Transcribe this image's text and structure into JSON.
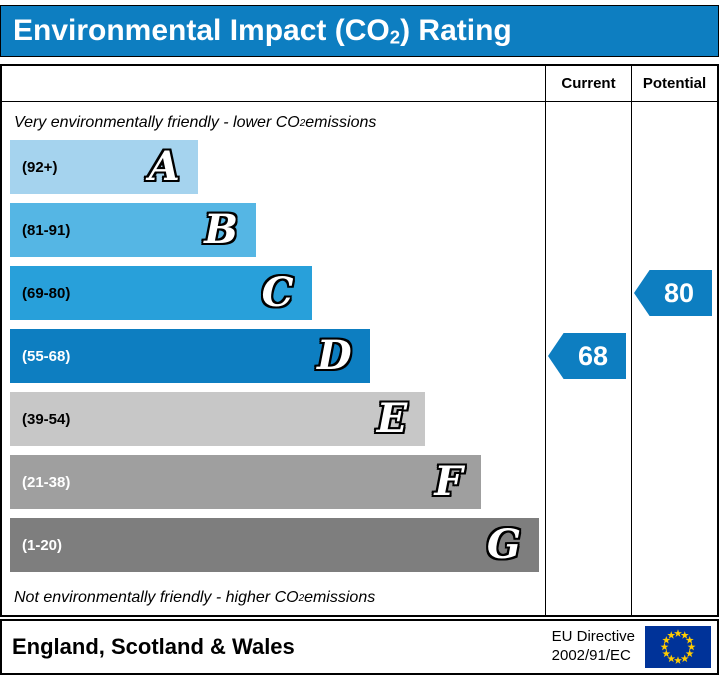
{
  "colors": {
    "accent_blue": "#0d7ec1",
    "flag_background": "#003399",
    "flag_stars": "#ffcc00"
  },
  "title": {
    "pre": "Environmental Impact (CO",
    "sub": "2",
    "post": ") Rating"
  },
  "columns": {
    "current": "Current",
    "potential": "Potential"
  },
  "notes": {
    "sub": "2",
    "top_pre": "Very environmentally friendly - lower CO",
    "top_post": " emissions",
    "bottom_pre": "Not environmentally friendly - higher CO",
    "bottom_post": " emissions"
  },
  "bands": [
    {
      "letter": "A",
      "range": "(92+)",
      "width_pct": 35.5,
      "color": "#a5d3ee",
      "label_color": "#000000"
    },
    {
      "letter": "B",
      "range": "(81-91)",
      "width_pct": 46.5,
      "color": "#55b6e4",
      "label_color": "#000000"
    },
    {
      "letter": "C",
      "range": "(69-80)",
      "width_pct": 57,
      "color": "#28a0da",
      "label_color": "#000000"
    },
    {
      "letter": "D",
      "range": "(55-68)",
      "width_pct": 68,
      "color": "#0d7ec1",
      "label_color": "#ffffff"
    },
    {
      "letter": "E",
      "range": "(39-54)",
      "width_pct": 78.5,
      "color": "#c7c7c7",
      "label_color": "#000000"
    },
    {
      "letter": "F",
      "range": "(21-38)",
      "width_pct": 89,
      "color": "#9f9f9f",
      "label_color": "#ffffff"
    },
    {
      "letter": "G",
      "range": "(1-20)",
      "width_pct": 100,
      "color": "#7e7e7e",
      "label_color": "#ffffff"
    }
  ],
  "current": {
    "value": "68",
    "band": "D",
    "band_index": 3
  },
  "potential": {
    "value": "80",
    "band": "C",
    "band_index": 2
  },
  "footer": {
    "region": "England, Scotland & Wales",
    "directive_line1": "EU Directive",
    "directive_line2": "2002/91/EC"
  },
  "chart_data": {
    "type": "bar",
    "title": "Environmental Impact (CO2) Rating",
    "categories": [
      "A",
      "B",
      "C",
      "D",
      "E",
      "F",
      "G"
    ],
    "band_ranges": [
      "92+",
      "81-91",
      "69-80",
      "55-68",
      "39-54",
      "21-38",
      "1-20"
    ],
    "bar_width_pct": [
      35.5,
      46.5,
      57,
      68,
      78.5,
      89,
      100
    ],
    "series": [
      {
        "name": "Current",
        "value": 68,
        "band": "D"
      },
      {
        "name": "Potential",
        "value": 80,
        "band": "C"
      }
    ],
    "top_annotation": "Very environmentally friendly - lower CO2 emissions",
    "bottom_annotation": "Not environmentally friendly - higher CO2 emissions",
    "region": "England, Scotland & Wales",
    "directive": "EU Directive 2002/91/EC"
  }
}
